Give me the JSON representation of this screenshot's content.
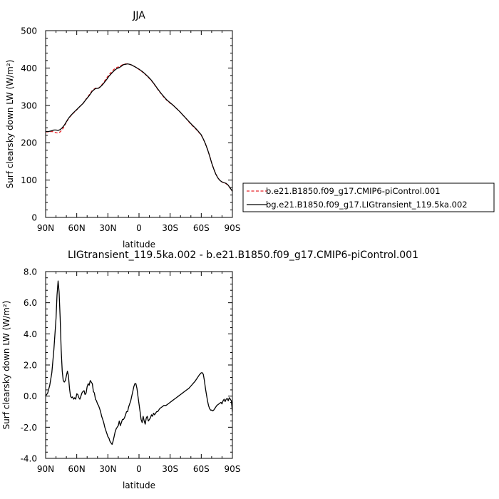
{
  "chart_data": [
    {
      "type": "line",
      "title": "JJA",
      "xlabel": "latitude",
      "ylabel": "Surf clearsky down LW (W/m²)",
      "xlim": [
        90,
        -90
      ],
      "ylim": [
        0,
        500
      ],
      "xticks": [
        90,
        60,
        30,
        0,
        -30,
        -60,
        -90
      ],
      "xtick_labels": [
        "90N",
        "60N",
        "30N",
        "0",
        "30S",
        "60S",
        "90S"
      ],
      "yticks": [
        0,
        100,
        200,
        300,
        400,
        500
      ],
      "ytick_labels": [
        "0",
        "100",
        "200",
        "300",
        "400",
        "500"
      ],
      "legend_position": "right",
      "series": [
        {
          "name": "b.e21.B1850.f09_g17.CMIP6-piControl.001",
          "color": "#e8262a",
          "dash": "dashed",
          "x": [
            90,
            87,
            84,
            82,
            80,
            78,
            76,
            74,
            72,
            70,
            68,
            66,
            63,
            60,
            57,
            54,
            51,
            48,
            45,
            42,
            39,
            37,
            35,
            33,
            31,
            29,
            27,
            25,
            23,
            21,
            19,
            17,
            15,
            13,
            11,
            9,
            7,
            5,
            3,
            0,
            -3,
            -6,
            -9,
            -12,
            -15,
            -18,
            -21,
            -24,
            -27,
            -30,
            -33,
            -36,
            -39,
            -42,
            -45,
            -48,
            -51,
            -54,
            -57,
            -60,
            -62,
            -64,
            -66,
            -68,
            -70,
            -72,
            -74,
            -76,
            -78,
            -80,
            -82,
            -84,
            -86,
            -88,
            -90
          ],
          "y": [
            229,
            229,
            230,
            229,
            227,
            226,
            229,
            235,
            244,
            255,
            264,
            271,
            280,
            288,
            297,
            305,
            317,
            328,
            340,
            346,
            346,
            351,
            358,
            366,
            374,
            382,
            388,
            394,
            399,
            402,
            403,
            407,
            410,
            411,
            411,
            410,
            408,
            405,
            402,
            396,
            390,
            383,
            375,
            366,
            355,
            343,
            332,
            322,
            313,
            306,
            300,
            292,
            284,
            275,
            266,
            256,
            247,
            239,
            230,
            220,
            210,
            197,
            182,
            165,
            146,
            130,
            116,
            106,
            99,
            95,
            92,
            90,
            85,
            78,
            70
          ]
        },
        {
          "name": "bg.e21.B1850.f09_g17.LIGtransient_119.5ka.002",
          "color": "#000000",
          "dash": "solid",
          "x": [
            90,
            87,
            84,
            82,
            80,
            78,
            76,
            74,
            72,
            70,
            68,
            66,
            63,
            60,
            57,
            54,
            51,
            48,
            45,
            42,
            39,
            37,
            35,
            33,
            31,
            29,
            27,
            25,
            23,
            21,
            19,
            17,
            15,
            13,
            11,
            9,
            7,
            5,
            3,
            0,
            -3,
            -6,
            -9,
            -12,
            -15,
            -18,
            -21,
            -24,
            -27,
            -30,
            -33,
            -36,
            -39,
            -42,
            -45,
            -48,
            -51,
            -54,
            -57,
            -60,
            -62,
            -64,
            -66,
            -68,
            -70,
            -72,
            -74,
            -76,
            -78,
            -80,
            -82,
            -84,
            -86,
            -88,
            -90
          ],
          "y": [
            230,
            230,
            232,
            234,
            234,
            233,
            235,
            240,
            247,
            256,
            265,
            272,
            281,
            289,
            297,
            305,
            316,
            326,
            338,
            345,
            346,
            350,
            356,
            363,
            370,
            378,
            384,
            390,
            395,
            399,
            401,
            405,
            409,
            410,
            411,
            410,
            408,
            405,
            402,
            397,
            391,
            384,
            376,
            367,
            356,
            344,
            333,
            323,
            314,
            307,
            300,
            292,
            284,
            275,
            266,
            257,
            248,
            240,
            231,
            221,
            210,
            197,
            182,
            165,
            146,
            130,
            116,
            106,
            99,
            95,
            93,
            91,
            86,
            78,
            70
          ]
        }
      ]
    },
    {
      "type": "line",
      "title": "LIGtransient_119.5ka.002 - b.e21.B1850.f09_g17.CMIP6-piControl.001",
      "xlabel": "latitude",
      "ylabel": "Surf clearsky down LW (W/m²)",
      "xlim": [
        90,
        -90
      ],
      "ylim": [
        -4.0,
        8.0
      ],
      "xticks": [
        90,
        60,
        30,
        0,
        -30,
        -60,
        -90
      ],
      "xtick_labels": [
        "90N",
        "60N",
        "30N",
        "0",
        "30S",
        "60S",
        "90S"
      ],
      "yticks": [
        -4,
        -2,
        0,
        2,
        4,
        6,
        8
      ],
      "ytick_labels": [
        "-4.0",
        "-2.0",
        "0.0",
        "2.0",
        "4.0",
        "6.0",
        "8.0"
      ],
      "series": [
        {
          "color": "#000000",
          "dash": "solid",
          "x": [
            90,
            88,
            86,
            84,
            82,
            80,
            79,
            78,
            77,
            76,
            75,
            74,
            73,
            72,
            71,
            70,
            69,
            68,
            67,
            66,
            65,
            64,
            63,
            62,
            61,
            60,
            59,
            58,
            57,
            56,
            55,
            54,
            53,
            52,
            51,
            50,
            49,
            48,
            47,
            46,
            45,
            44,
            43,
            42,
            41,
            40,
            39,
            38,
            37,
            36,
            35,
            34,
            33,
            32,
            31,
            30,
            29,
            28,
            27,
            26,
            25,
            24,
            23,
            22,
            21,
            20,
            19,
            18,
            17,
            16,
            15,
            14,
            13,
            12,
            11,
            10,
            9,
            8,
            7,
            6,
            5,
            4,
            3,
            2,
            1,
            0,
            -1,
            -2,
            -3,
            -4,
            -5,
            -6,
            -7,
            -8,
            -9,
            -10,
            -11,
            -12,
            -13,
            -14,
            -15,
            -16,
            -17,
            -18,
            -19,
            -20,
            -22,
            -24,
            -26,
            -28,
            -30,
            -32,
            -34,
            -36,
            -38,
            -40,
            -42,
            -44,
            -46,
            -48,
            -50,
            -52,
            -54,
            -56,
            -58,
            -60,
            -61,
            -62,
            -63,
            -64,
            -65,
            -66,
            -67,
            -68,
            -69,
            -70,
            -71,
            -72,
            -73,
            -74,
            -75,
            -76,
            -77,
            -78,
            -79,
            -80,
            -81,
            -82,
            -83,
            -84,
            -85,
            -86,
            -87,
            -88,
            -89,
            -90
          ],
          "y": [
            0.0,
            0.2,
            0.7,
            1.5,
            3.0,
            5.0,
            6.5,
            7.4,
            6.7,
            5.0,
            3.0,
            1.6,
            1.0,
            0.9,
            1.0,
            1.3,
            1.6,
            1.3,
            0.5,
            0.0,
            -0.1,
            -0.05,
            -0.2,
            -0.1,
            -0.2,
            0.15,
            0.1,
            -0.1,
            -0.2,
            0.0,
            0.2,
            0.3,
            0.35,
            0.1,
            0.2,
            0.6,
            0.8,
            0.7,
            1.0,
            0.9,
            0.8,
            0.3,
            0.2,
            -0.2,
            -0.3,
            -0.5,
            -0.6,
            -0.8,
            -1.0,
            -1.3,
            -1.5,
            -1.7,
            -2.0,
            -2.2,
            -2.4,
            -2.6,
            -2.7,
            -2.9,
            -3.0,
            -3.1,
            -2.9,
            -2.6,
            -2.3,
            -2.1,
            -2.0,
            -1.9,
            -1.6,
            -1.9,
            -1.7,
            -1.5,
            -1.5,
            -1.4,
            -1.2,
            -1.0,
            -1.0,
            -0.7,
            -0.5,
            -0.3,
            0.0,
            0.3,
            0.6,
            0.8,
            0.8,
            0.5,
            0.0,
            -0.5,
            -1.0,
            -1.5,
            -1.7,
            -1.3,
            -1.6,
            -1.8,
            -1.4,
            -1.3,
            -1.6,
            -1.5,
            -1.4,
            -1.2,
            -1.3,
            -1.1,
            -1.2,
            -1.1,
            -1.0,
            -1.0,
            -0.9,
            -0.8,
            -0.7,
            -0.6,
            -0.6,
            -0.5,
            -0.4,
            -0.3,
            -0.2,
            -0.1,
            0.0,
            0.1,
            0.2,
            0.3,
            0.4,
            0.5,
            0.65,
            0.8,
            0.95,
            1.15,
            1.35,
            1.5,
            1.5,
            1.4,
            1.0,
            0.5,
            0.1,
            -0.3,
            -0.6,
            -0.8,
            -0.9,
            -0.9,
            -0.95,
            -0.9,
            -0.8,
            -0.7,
            -0.6,
            -0.55,
            -0.5,
            -0.45,
            -0.4,
            -0.5,
            -0.3,
            -0.2,
            -0.35,
            -0.2,
            -0.15,
            -0.3,
            -0.1,
            -0.2,
            -0.3,
            -1.0
          ]
        }
      ]
    }
  ]
}
